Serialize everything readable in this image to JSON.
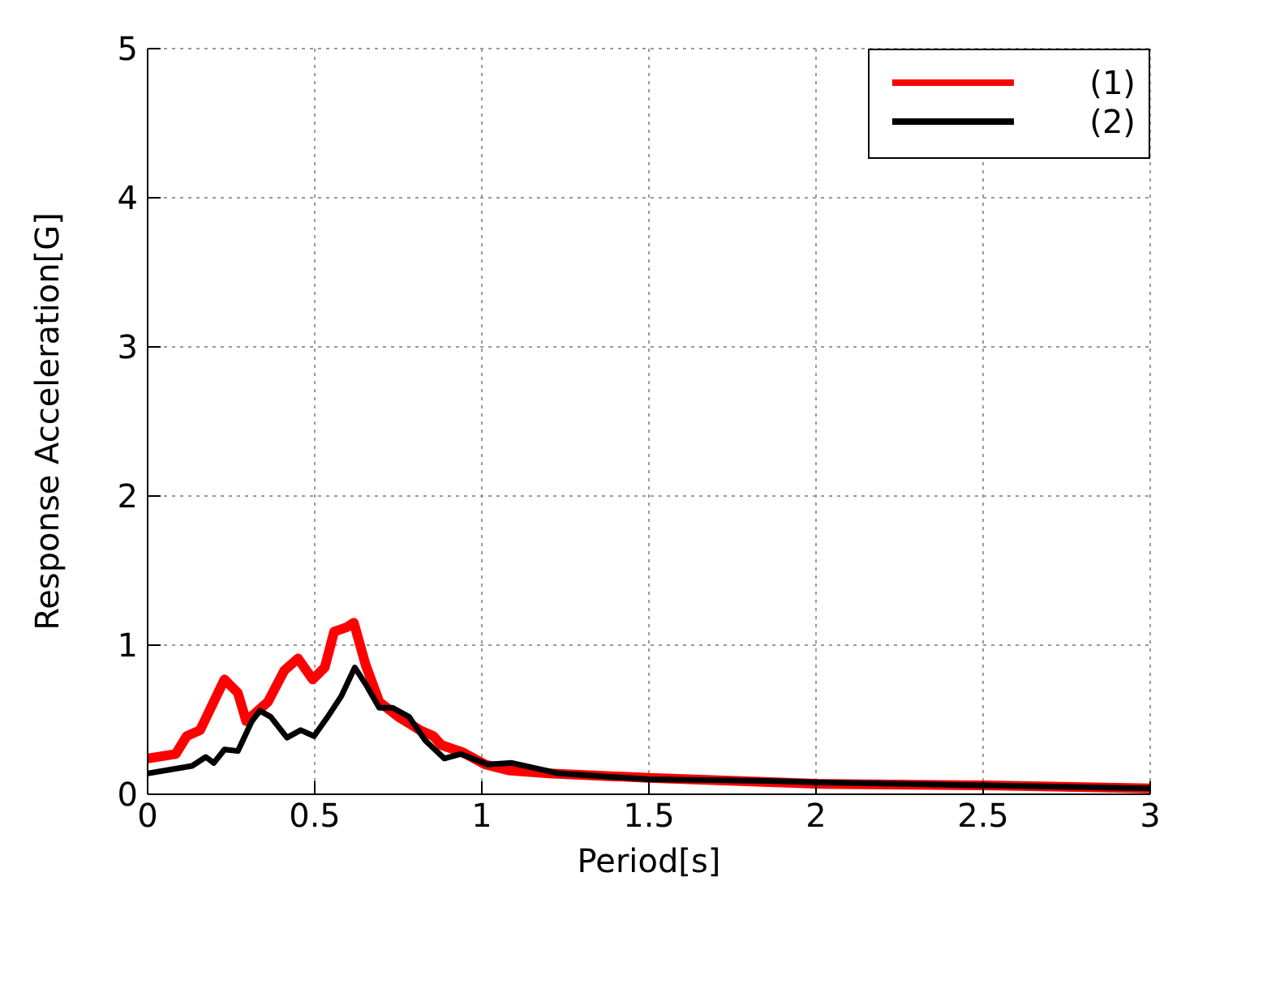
{
  "chart_data": {
    "type": "line",
    "xlabel": "Period[s]",
    "ylabel": "Response Acceleration[G]",
    "xlim": [
      0,
      3
    ],
    "ylim": [
      0,
      5
    ],
    "xticks": [
      0,
      0.5,
      1,
      1.5,
      2,
      2.5,
      3
    ],
    "yticks": [
      0,
      1,
      2,
      3,
      4,
      5
    ],
    "grid": true,
    "legend": "top right",
    "marker": "none",
    "line_style": "solid",
    "series": [
      {
        "name": "(1)",
        "color": "#ff0000",
        "x": [
          0,
          0.084,
          0.117,
          0.157,
          0.23,
          0.27,
          0.295,
          0.36,
          0.409,
          0.45,
          0.494,
          0.53,
          0.558,
          0.596,
          0.617,
          0.652,
          0.693,
          0.75,
          0.815,
          0.855,
          0.879,
          0.944,
          1.01,
          1.08,
          1.2,
          1.5,
          2,
          2.5,
          3
        ],
        "values": [
          0.24,
          0.27,
          0.39,
          0.43,
          0.77,
          0.68,
          0.49,
          0.62,
          0.83,
          0.91,
          0.77,
          0.85,
          1.09,
          1.12,
          1.15,
          0.87,
          0.62,
          0.52,
          0.43,
          0.39,
          0.33,
          0.28,
          0.2,
          0.16,
          0.14,
          0.11,
          0.07,
          0.06,
          0.04
        ]
      },
      {
        "name": "(2)",
        "color": "#000000",
        "x": [
          0,
          0.133,
          0.174,
          0.198,
          0.23,
          0.27,
          0.312,
          0.336,
          0.368,
          0.417,
          0.458,
          0.498,
          0.539,
          0.58,
          0.62,
          0.652,
          0.693,
          0.733,
          0.782,
          0.831,
          0.888,
          0.936,
          1.018,
          1.09,
          1.23,
          1.5,
          1.85,
          2,
          2.5,
          3
        ],
        "values": [
          0.14,
          0.19,
          0.25,
          0.21,
          0.3,
          0.29,
          0.49,
          0.56,
          0.52,
          0.38,
          0.43,
          0.39,
          0.52,
          0.66,
          0.85,
          0.74,
          0.58,
          0.58,
          0.52,
          0.36,
          0.24,
          0.27,
          0.2,
          0.21,
          0.14,
          0.1,
          0.09,
          0.08,
          0.06,
          0.04
        ]
      }
    ]
  }
}
